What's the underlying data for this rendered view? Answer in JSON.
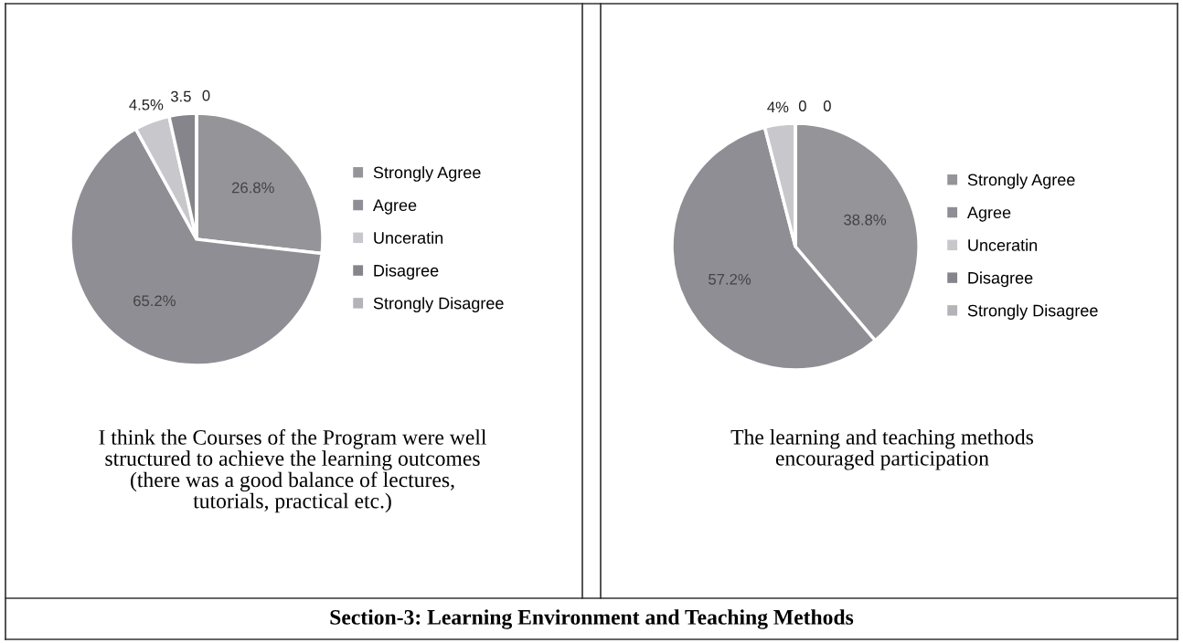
{
  "chart_data": [
    {
      "type": "pie",
      "title": "I think the Courses of the Program were well\nstructured to achieve the learning outcomes\n(there was a good balance of lectures,\ntutorials, practical etc.)",
      "categories": [
        "Strongly Agree",
        "Agree",
        "Unceratin",
        "Disagree",
        "Strongly Disagree"
      ],
      "values": [
        26.8,
        65.2,
        4.5,
        3.5,
        0
      ],
      "value_labels": [
        "26.8%",
        "65.2%",
        "4.5%",
        "3.5",
        "0"
      ],
      "colors": [
        "#959499",
        "#8f8e94",
        "#c8c7cc",
        "#86858b",
        "#b4b3b8"
      ],
      "legend": "right",
      "annotations": [
        "Section-3: Learning Environment and Teaching Methods"
      ]
    },
    {
      "type": "pie",
      "title": "The learning and teaching methods\nencouraged participation",
      "categories": [
        "Strongly Agree",
        "Agree",
        "Unceratin",
        "Disagree",
        "Strongly Disagree"
      ],
      "values": [
        38.8,
        57.2,
        4,
        0,
        0
      ],
      "value_labels": [
        "38.8%",
        "57.2%",
        "4%",
        "0",
        "0"
      ],
      "colors": [
        "#959499",
        "#8f8e94",
        "#c8c7cc",
        "#86858b",
        "#b4b3b8"
      ],
      "legend": "right"
    }
  ]
}
